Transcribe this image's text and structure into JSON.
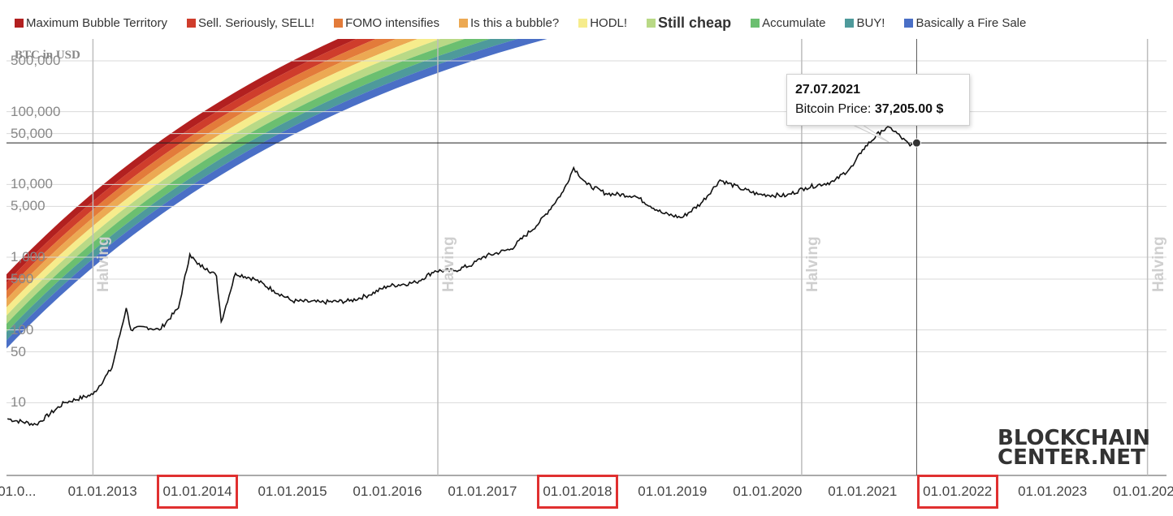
{
  "legend": [
    {
      "label": "Maximum Bubble Territory",
      "color": "#b22020",
      "bold": false
    },
    {
      "label": "Sell. Seriously, SELL!",
      "color": "#cf3d2c",
      "bold": false
    },
    {
      "label": "FOMO intensifies",
      "color": "#e37b3a",
      "bold": false
    },
    {
      "label": "Is this a bubble?",
      "color": "#eca953",
      "bold": false
    },
    {
      "label": "HODL!",
      "color": "#f6ec8c",
      "bold": false
    },
    {
      "label": "Still cheap",
      "color": "#b9d986",
      "bold": true
    },
    {
      "label": "Accumulate",
      "color": "#6bbf70",
      "bold": false
    },
    {
      "label": "BUY!",
      "color": "#4e9a9b",
      "bold": false
    },
    {
      "label": "Basically a Fire Sale",
      "color": "#4a6fc6",
      "bold": false
    }
  ],
  "chart_data": {
    "type": "area",
    "ylabel": "BTC in USD",
    "y_scale": "log",
    "ylim": [
      1,
      1000000
    ],
    "y_tick_labels": [
      "500,000",
      "100,000",
      "50,000",
      "10,000",
      "5,000",
      "1,000",
      "500",
      "100",
      "50",
      "10"
    ],
    "y_tick_values": [
      500000,
      100000,
      50000,
      10000,
      5000,
      1000,
      500,
      100,
      50,
      10
    ],
    "x_tick_labels": [
      "01.0...",
      "01.01.2013",
      "01.01.2014",
      "01.01.2015",
      "01.01.2016",
      "01.01.2017",
      "01.01.2018",
      "01.01.2019",
      "01.01.2020",
      "01.01.2021",
      "01.01.2022",
      "01.01.2023",
      "01.01.2024"
    ],
    "x_tick_years": [
      2012.1,
      2013.0,
      2014.0,
      2015.0,
      2016.0,
      2017.0,
      2018.0,
      2019.0,
      2020.0,
      2021.0,
      2022.0,
      2023.0,
      2024.0
    ],
    "highlighted_x_ticks": [
      "01.01.2014",
      "01.01.2018",
      "01.01.2022"
    ],
    "xlim": [
      2011.99,
      2024.2
    ],
    "band_colors": [
      "#b22020",
      "#cf3d2c",
      "#e37b3a",
      "#eca953",
      "#f6ec8c",
      "#b9d986",
      "#6bbf70",
      "#4e9a9b",
      "#4a6fc6"
    ],
    "halvings": [
      {
        "label": "Halving",
        "year": 2012.9
      },
      {
        "label": "Halving",
        "year": 2016.53
      },
      {
        "label": "Halving",
        "year": 2020.36
      },
      {
        "label": "Halving",
        "year": 2024.0
      }
    ],
    "price_series": {
      "name": "Bitcoin Price",
      "x": [
        2012.0,
        2012.3,
        2012.6,
        2012.9,
        2013.1,
        2013.25,
        2013.3,
        2013.45,
        2013.6,
        2013.8,
        2013.92,
        2014.0,
        2014.1,
        2014.2,
        2014.25,
        2014.4,
        2014.6,
        2014.8,
        2015.0,
        2015.3,
        2015.6,
        2015.8,
        2016.0,
        2016.3,
        2016.5,
        2016.7,
        2016.9,
        2017.0,
        2017.3,
        2017.6,
        2017.85,
        2017.96,
        2018.1,
        2018.3,
        2018.6,
        2018.9,
        2019.1,
        2019.3,
        2019.5,
        2019.7,
        2019.9,
        2020.2,
        2020.4,
        2020.7,
        2020.9,
        2021.0,
        2021.2,
        2021.3,
        2021.5,
        2021.57
      ],
      "y": [
        6,
        5,
        10,
        13,
        30,
        200,
        100,
        110,
        100,
        200,
        1100,
        800,
        700,
        550,
        130,
        600,
        500,
        350,
        250,
        240,
        250,
        300,
        400,
        450,
        650,
        650,
        800,
        1000,
        1300,
        3000,
        8000,
        17000,
        10000,
        7500,
        7000,
        4000,
        3500,
        5500,
        11500,
        9000,
        7300,
        7000,
        9000,
        11000,
        18000,
        30000,
        55000,
        60000,
        34000,
        37205
      ]
    },
    "crosshair": {
      "x": 2021.57,
      "y": 37205
    },
    "tooltip": {
      "date": "27.07.2021",
      "label": "Bitcoin Price:",
      "value": "37,205.00 $"
    }
  },
  "watermark": {
    "line1": "BLOCKCHAIN",
    "line2": "CENTER.NET"
  }
}
